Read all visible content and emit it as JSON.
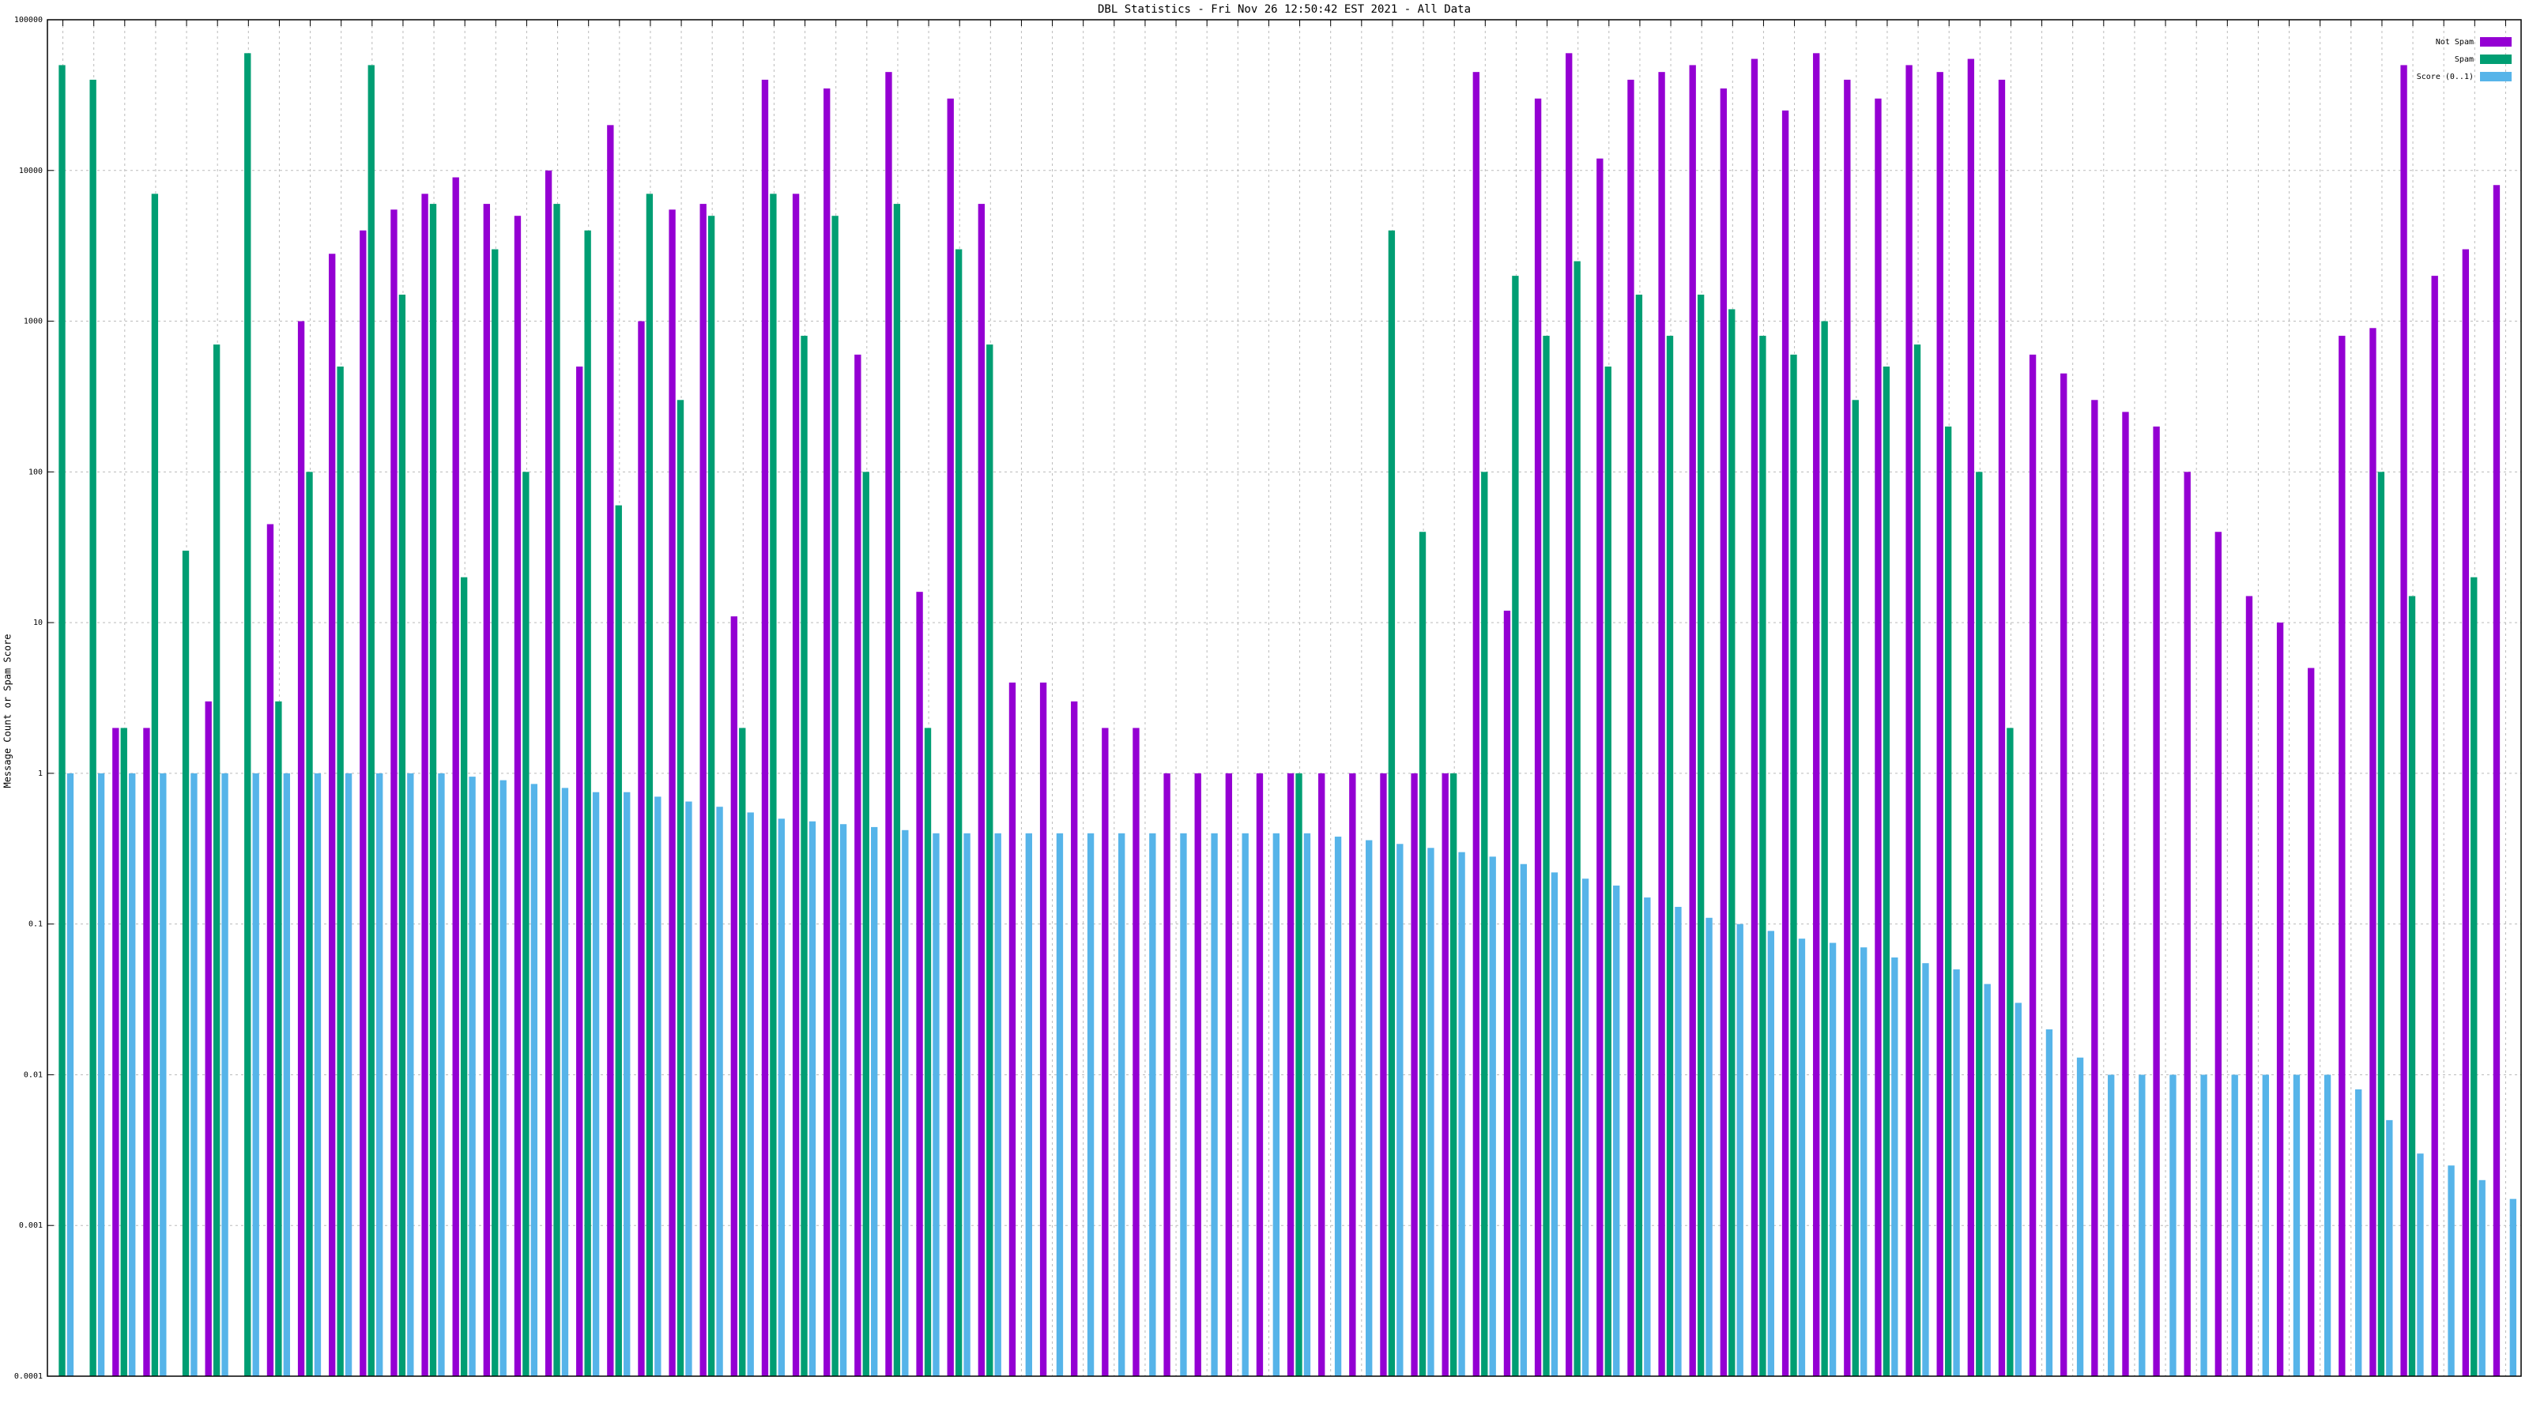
{
  "chart_data": {
    "type": "bar",
    "title": "DBL Statistics - Fri Nov 26 12:50:42 EST 2021 - All Data",
    "ylabel": "Message Count or Spam Score",
    "log_y": true,
    "grid": true,
    "legend": "upper right",
    "ylim": [
      0.0001,
      100000
    ],
    "yticks": [
      0.0001,
      0.001,
      0.01,
      0.1,
      1,
      10,
      100,
      1000,
      10000,
      100000
    ],
    "categories": [
      null,
      null,
      null,
      null,
      null,
      null,
      null,
      null,
      null,
      null,
      null,
      null,
      null,
      null,
      null,
      null,
      null,
      null,
      null,
      null,
      null,
      null,
      null,
      null,
      null,
      null,
      null,
      null,
      null,
      null,
      null,
      null,
      null,
      null,
      null,
      null,
      null,
      null,
      null,
      null,
      null,
      null,
      null,
      null,
      null,
      null,
      null,
      null,
      null,
      null,
      null,
      null,
      null,
      null,
      null,
      null,
      null,
      null,
      null,
      null,
      null,
      null,
      null,
      null,
      null,
      null,
      null,
      null,
      null,
      null,
      null,
      null,
      null,
      null,
      null,
      null,
      null,
      null,
      null,
      null
    ],
    "series": [
      {
        "name": "Not Spam",
        "color": "#9400d3",
        "values": [
          null,
          null,
          2,
          2,
          null,
          3,
          null,
          45,
          1000,
          2800,
          4000,
          5500,
          7000,
          9000,
          6000,
          5000,
          10000,
          500,
          20000,
          1000,
          5500,
          6000,
          11,
          40000,
          7000,
          35000,
          600,
          45000,
          16,
          30000,
          6000,
          4,
          4,
          3,
          2,
          2,
          1,
          1,
          1,
          1,
          1,
          1,
          1,
          1,
          1,
          1,
          45000,
          12,
          30000,
          60000,
          12000,
          40000,
          45000,
          50000,
          35000,
          55000,
          25000,
          60000,
          40000,
          30000,
          50000,
          45000,
          55000,
          40000,
          600,
          450,
          300,
          250,
          200,
          100,
          40,
          15,
          10,
          5,
          800,
          900,
          50000,
          2000,
          3000,
          8000
        ]
      },
      {
        "name": "Spam",
        "color": "#009e73",
        "values": [
          50000,
          40000,
          2,
          7000,
          30,
          700,
          60000,
          3,
          100,
          500,
          50000,
          1500,
          6000,
          20,
          3000,
          100,
          6000,
          4000,
          60,
          7000,
          300,
          5000,
          2,
          7000,
          800,
          5000,
          100,
          6000,
          2,
          3000,
          700,
          null,
          null,
          null,
          null,
          null,
          null,
          null,
          null,
          null,
          1,
          null,
          null,
          4000,
          40,
          1,
          100,
          2000,
          800,
          2500,
          500,
          1500,
          800,
          1500,
          1200,
          800,
          600,
          1000,
          300,
          500,
          700,
          200,
          100,
          2,
          null,
          null,
          null,
          null,
          null,
          null,
          null,
          null,
          null,
          null,
          null,
          100,
          15,
          null,
          20,
          null
        ]
      },
      {
        "name": "Score (0..1)",
        "color": "#56b4e9",
        "values": [
          1,
          1,
          1,
          1,
          1,
          1,
          1,
          1,
          1,
          1,
          1,
          1,
          1,
          0.95,
          0.9,
          0.85,
          0.8,
          0.75,
          0.75,
          0.7,
          0.65,
          0.6,
          0.55,
          0.5,
          0.48,
          0.46,
          0.44,
          0.42,
          0.4,
          0.4,
          0.4,
          0.4,
          0.4,
          0.4,
          0.4,
          0.4,
          0.4,
          0.4,
          0.4,
          0.4,
          0.4,
          0.38,
          0.36,
          0.34,
          0.32,
          0.3,
          0.28,
          0.25,
          0.22,
          0.2,
          0.18,
          0.15,
          0.13,
          0.11,
          0.1,
          0.09,
          0.08,
          0.075,
          0.07,
          0.06,
          0.055,
          0.05,
          0.04,
          0.03,
          0.02,
          0.013,
          0.01,
          0.01,
          0.01,
          0.01,
          0.01,
          0.01,
          0.01,
          0.01,
          0.008,
          0.005,
          0.003,
          0.0025,
          0.002,
          0.0015
        ]
      }
    ]
  }
}
